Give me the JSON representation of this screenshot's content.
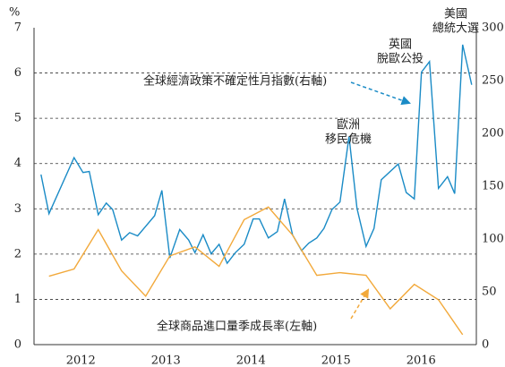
{
  "chart_data": {
    "type": "line",
    "y_label": "%",
    "xlim": [
      2011.95,
      2017.15
    ],
    "xticks": [
      {
        "value": 2012.5,
        "label": "2012"
      },
      {
        "value": 2013.5,
        "label": "2013"
      },
      {
        "value": 2014.5,
        "label": "2014"
      },
      {
        "value": 2015.5,
        "label": "2015"
      },
      {
        "value": 2016.5,
        "label": "2016"
      }
    ],
    "ylim": [
      0,
      7
    ],
    "yticks": [
      0,
      1,
      2,
      3,
      4,
      5,
      6,
      7
    ],
    "y2lim": [
      0,
      300
    ],
    "y2ticks": [
      0,
      50,
      100,
      150,
      200,
      250,
      300
    ],
    "grid": true,
    "series": [
      {
        "name": "全球經濟政策不確定性月指數(右軸)",
        "color": "#1a8bc6",
        "axis": "y2",
        "x": [
          2012.032,
          2012.126,
          2012.421,
          2012.526,
          2012.6,
          2012.705,
          2012.8,
          2012.874,
          2012.979,
          2013.074,
          2013.168,
          2013.368,
          2013.453,
          2013.547,
          2013.663,
          2013.768,
          2013.842,
          2013.937,
          2014.032,
          2014.126,
          2014.221,
          2014.316,
          2014.421,
          2014.526,
          2014.6,
          2014.705,
          2014.811,
          2014.895,
          2014.989,
          2015.095,
          2015.179,
          2015.274,
          2015.358,
          2015.453,
          2015.547,
          2015.653,
          2015.747,
          2015.853,
          2015.947,
          2016.032,
          2016.232,
          2016.326,
          2016.421,
          2016.505,
          2016.6,
          2016.705,
          2016.811,
          2016.895,
          2016.989,
          2017.095
        ],
        "values": [
          161,
          124,
          177,
          163,
          164,
          123,
          134,
          128,
          99,
          106,
          103,
          122,
          146,
          82,
          109,
          99,
          87,
          104,
          86,
          95,
          77,
          87,
          95,
          119,
          119,
          101,
          107,
          138,
          104,
          89,
          96,
          101,
          110,
          128,
          135,
          197,
          129,
          93,
          110,
          156,
          171,
          144,
          138,
          258,
          268,
          148,
          159,
          143,
          284,
          246
        ]
      },
      {
        "name": "全球商品進口量季成長率(左軸)",
        "color": "#f2a93b",
        "x": [
          2012.126,
          2012.421,
          2012.705,
          2012.979,
          2013.263,
          2013.547,
          2013.842,
          2014.126,
          2014.421,
          2014.705,
          2014.989,
          2015.274,
          2015.547,
          2015.853,
          2016.137,
          2016.421,
          2016.705,
          2016.989
        ],
        "values": [
          1.51,
          1.67,
          2.54,
          1.63,
          1.07,
          1.96,
          2.16,
          1.73,
          2.76,
          3.04,
          2.42,
          1.53,
          1.59,
          1.53,
          0.79,
          1.33,
          0.99,
          0.22
        ]
      }
    ],
    "annotations": [
      {
        "lines": [
          "歐洲",
          "移民危機"
        ]
      },
      {
        "lines": [
          "英國",
          "脫歐公投"
        ]
      },
      {
        "lines": [
          "美國",
          "總統大選"
        ]
      }
    ]
  }
}
